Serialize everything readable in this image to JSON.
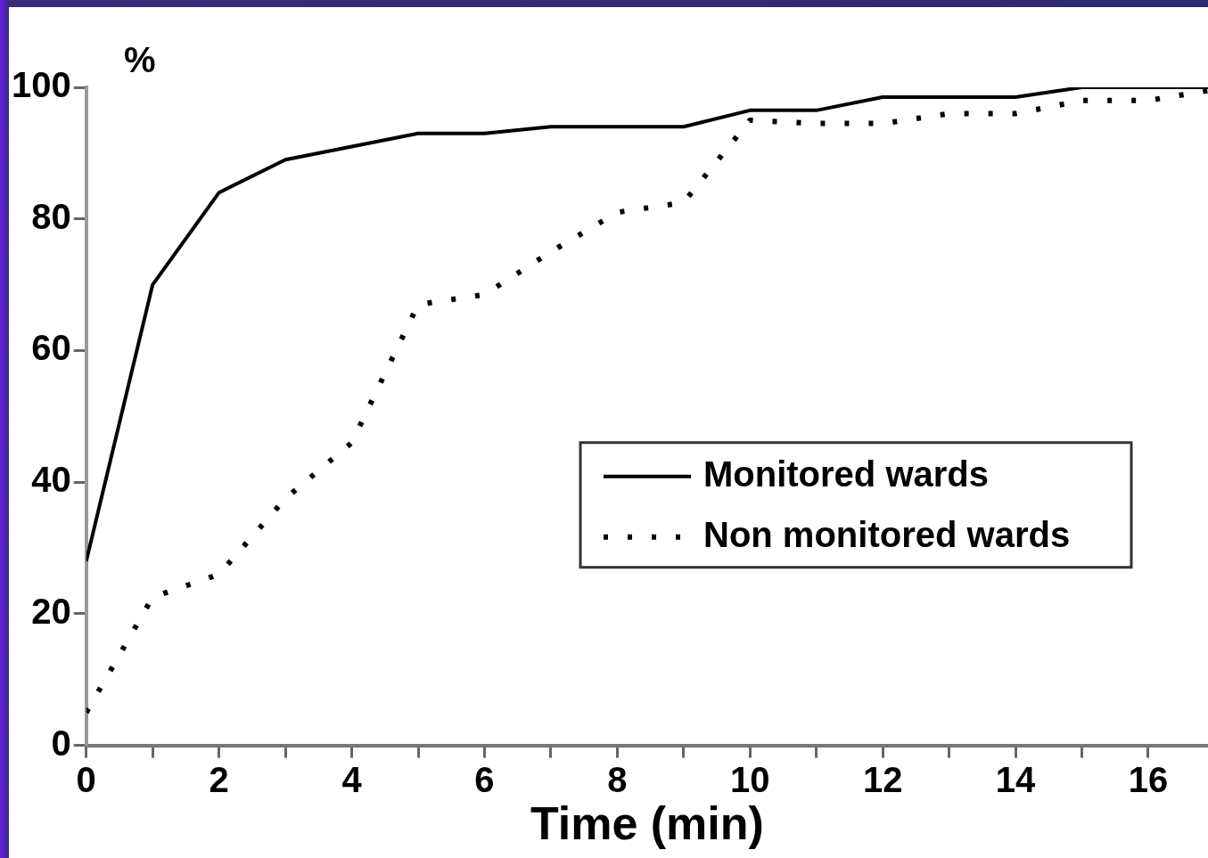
{
  "chart_data": {
    "type": "line",
    "xlabel": "Time (min)",
    "ylabel": "%",
    "xlim": [
      0,
      16.9
    ],
    "ylim": [
      0,
      100
    ],
    "xticks": [
      0,
      {
        "value": 1,
        "label": null
      },
      2,
      {
        "value": 3,
        "label": null
      },
      4,
      {
        "value": 5,
        "label": null
      },
      6,
      {
        "value": 7,
        "label": null
      },
      8,
      {
        "value": 9,
        "label": null
      },
      10,
      {
        "value": 11,
        "label": null
      },
      12,
      {
        "value": 13,
        "label": null
      },
      14,
      {
        "value": 15,
        "label": null
      },
      16
    ],
    "yticks": [
      0,
      20,
      40,
      60,
      80,
      100
    ],
    "grid": false,
    "legend": "right",
    "marker": "none",
    "series": [
      {
        "name": "Monitored wards",
        "color": "#000000",
        "line_style": "solid",
        "x": [
          0,
          1,
          2,
          3,
          4,
          5,
          6,
          7,
          8,
          9,
          10,
          11,
          12,
          13,
          14,
          15,
          16,
          16.9
        ],
        "values": [
          28,
          70,
          84,
          89,
          91,
          93,
          93,
          94,
          94,
          94,
          96.5,
          96.5,
          98.5,
          98.5,
          98.5,
          100,
          100,
          100
        ]
      },
      {
        "name": "Non monitored wards",
        "color": "#000000",
        "line_style": "dotted",
        "x": [
          0,
          1,
          2,
          3,
          4,
          5,
          6,
          7,
          8,
          9,
          10,
          11,
          12,
          13,
          14,
          15,
          16,
          16.9
        ],
        "values": [
          5,
          22.5,
          26,
          37.5,
          46,
          67,
          68.5,
          75,
          81,
          82.5,
          95,
          94.5,
          94.5,
          96,
          96,
          98,
          98,
          99.5
        ]
      }
    ]
  }
}
